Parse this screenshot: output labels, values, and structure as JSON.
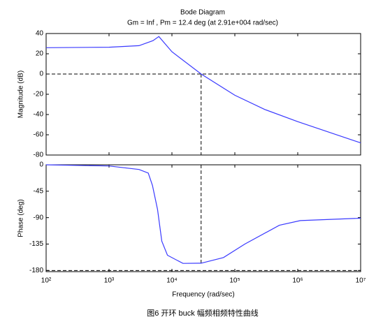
{
  "caption": "图6 开环 buck 幅频相频特性曲线",
  "chart_data": [
    {
      "type": "line",
      "title": "Bode Diagram",
      "subtitle": "Gm = Inf ,  Pm = 12.4 deg (at 2.91e+004 rad/sec)",
      "y_label": "Magnitude (dB)",
      "x_scale": "log",
      "xlim": [
        100,
        10000000
      ],
      "xticks": [
        100,
        1000,
        10000,
        100000,
        1000000,
        10000000
      ],
      "ylim": [
        -80,
        40
      ],
      "yticks": [
        -80,
        -60,
        -40,
        -20,
        0,
        20,
        40
      ],
      "reference_line": 0,
      "crossover_frequency": 29100,
      "series": [
        {
          "color": "#3a3aff",
          "x": [
            100,
            1000,
            3000,
            5000,
            6200,
            10000,
            29100,
            100000,
            300000,
            1000000,
            10000000
          ],
          "values": [
            26,
            26.5,
            28,
            33,
            37,
            22,
            0,
            -21,
            -35,
            -47,
            -68
          ]
        }
      ]
    },
    {
      "type": "line",
      "y_label": "Phase (deg)",
      "x_label": "Frequency  (rad/sec)",
      "x_scale": "log",
      "xlim": [
        100,
        10000000
      ],
      "xticks": [
        {
          "value": 100,
          "label": "10²"
        },
        {
          "value": 1000,
          "label": "10³"
        },
        {
          "value": 10000,
          "label": "10⁴"
        },
        {
          "value": 100000,
          "label": "10⁵"
        },
        {
          "value": 1000000,
          "label": "10⁶"
        },
        {
          "value": 10000000,
          "label": "10⁷"
        }
      ],
      "ylim": [
        -182,
        0
      ],
      "yticks": [
        -180,
        -135,
        -90,
        -45,
        0
      ],
      "reference_line": -180,
      "crossover_frequency": 29100,
      "series": [
        {
          "color": "#3a3aff",
          "x": [
            100,
            1000,
            3000,
            4200,
            4900,
            5900,
            6900,
            8500,
            15000,
            29100,
            66000,
            144000,
            510000,
            1100000,
            10000000
          ],
          "values": [
            0,
            -2,
            -8,
            -14,
            -35,
            -76,
            -130,
            -154,
            -168,
            -167.6,
            -158,
            -135,
            -103,
            -95,
            -91
          ]
        }
      ]
    }
  ]
}
